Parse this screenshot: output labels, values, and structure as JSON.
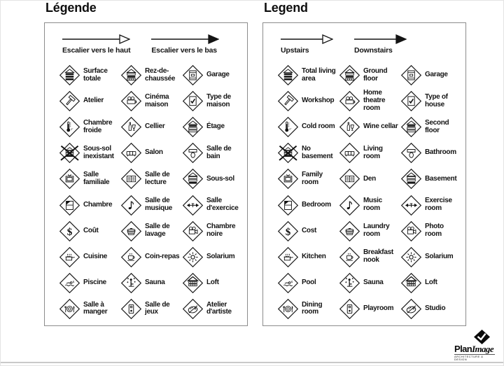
{
  "legends": [
    {
      "id": "fr",
      "title": "Légende",
      "stairs": [
        {
          "icon": "stair-up",
          "label": "Escalier vers le haut"
        },
        {
          "icon": "stair-down",
          "label": "Escalier vers le bas"
        }
      ],
      "items": [
        {
          "icon": "total-living-area",
          "label": "Surface totale"
        },
        {
          "icon": "ground-floor",
          "label": "Rez-de-chaussée"
        },
        {
          "icon": "garage",
          "label": "Garage"
        },
        {
          "icon": "workshop",
          "label": "Atelier"
        },
        {
          "icon": "home-theatre",
          "label": "Cinéma maison"
        },
        {
          "icon": "house-type",
          "label": "Type de maison"
        },
        {
          "icon": "cold-room",
          "label": "Chambre froide"
        },
        {
          "icon": "wine-cellar",
          "label": "Cellier"
        },
        {
          "icon": "second-floor",
          "label": "Étage"
        },
        {
          "icon": "no-basement",
          "label": "Sous-sol inexistant"
        },
        {
          "icon": "living-room",
          "label": "Salon"
        },
        {
          "icon": "bathroom",
          "label": "Salle de bain"
        },
        {
          "icon": "family-room",
          "label": "Salle familiale"
        },
        {
          "icon": "den",
          "label": "Salle de lecture"
        },
        {
          "icon": "basement",
          "label": "Sous-sol"
        },
        {
          "icon": "bedroom",
          "label": "Chambre"
        },
        {
          "icon": "music-room",
          "label": "Salle de musique"
        },
        {
          "icon": "exercise-room",
          "label": "Salle d'exercice"
        },
        {
          "icon": "cost",
          "label": "Coût"
        },
        {
          "icon": "laundry-room",
          "label": "Salle de lavage"
        },
        {
          "icon": "photo-room",
          "label": "Chambre noire"
        },
        {
          "icon": "kitchen",
          "label": "Cuisine"
        },
        {
          "icon": "breakfast-nook",
          "label": "Coin-repas"
        },
        {
          "icon": "solarium",
          "label": "Solarium"
        },
        {
          "icon": "pool",
          "label": "Piscine"
        },
        {
          "icon": "sauna",
          "label": "Sauna"
        },
        {
          "icon": "loft",
          "label": "Loft"
        },
        {
          "icon": "dining-room",
          "label": "Salle à manger"
        },
        {
          "icon": "playroom",
          "label": "Salle de jeux"
        },
        {
          "icon": "studio",
          "label": "Atelier d'artiste"
        }
      ]
    },
    {
      "id": "en",
      "title": "Legend",
      "stairs": [
        {
          "icon": "stair-up",
          "label": "Upstairs"
        },
        {
          "icon": "stair-down",
          "label": "Downstairs"
        }
      ],
      "items": [
        {
          "icon": "total-living-area",
          "label": "Total living area"
        },
        {
          "icon": "ground-floor",
          "label": "Ground floor"
        },
        {
          "icon": "garage",
          "label": "Garage"
        },
        {
          "icon": "workshop",
          "label": "Workshop"
        },
        {
          "icon": "home-theatre",
          "label": "Home theatre room"
        },
        {
          "icon": "house-type",
          "label": "Type of house"
        },
        {
          "icon": "cold-room",
          "label": "Cold room"
        },
        {
          "icon": "wine-cellar",
          "label": "Wine cellar"
        },
        {
          "icon": "second-floor",
          "label": "Second floor"
        },
        {
          "icon": "no-basement",
          "label": "No basement"
        },
        {
          "icon": "living-room",
          "label": "Living room"
        },
        {
          "icon": "bathroom",
          "label": "Bathroom"
        },
        {
          "icon": "family-room",
          "label": "Family room"
        },
        {
          "icon": "den",
          "label": "Den"
        },
        {
          "icon": "basement",
          "label": "Basement"
        },
        {
          "icon": "bedroom",
          "label": "Bedroom"
        },
        {
          "icon": "music-room",
          "label": "Music room"
        },
        {
          "icon": "exercise-room",
          "label": "Exercise room"
        },
        {
          "icon": "cost",
          "label": "Cost"
        },
        {
          "icon": "laundry-room",
          "label": "Laundry room"
        },
        {
          "icon": "photo-room",
          "label": "Photo room"
        },
        {
          "icon": "kitchen",
          "label": "Kitchen"
        },
        {
          "icon": "breakfast-nook",
          "label": "Breakfast nook"
        },
        {
          "icon": "solarium",
          "label": "Solarium"
        },
        {
          "icon": "pool",
          "label": "Pool"
        },
        {
          "icon": "sauna",
          "label": "Sauna"
        },
        {
          "icon": "loft",
          "label": "Loft"
        },
        {
          "icon": "dining-room",
          "label": "Dining room"
        },
        {
          "icon": "playroom",
          "label": "Playroom"
        },
        {
          "icon": "studio",
          "label": "Studio"
        }
      ]
    }
  ],
  "logo": {
    "prefix": "Plan",
    "suffix": "Image",
    "tagline": "ARCHITECTURE & DESIGN"
  }
}
